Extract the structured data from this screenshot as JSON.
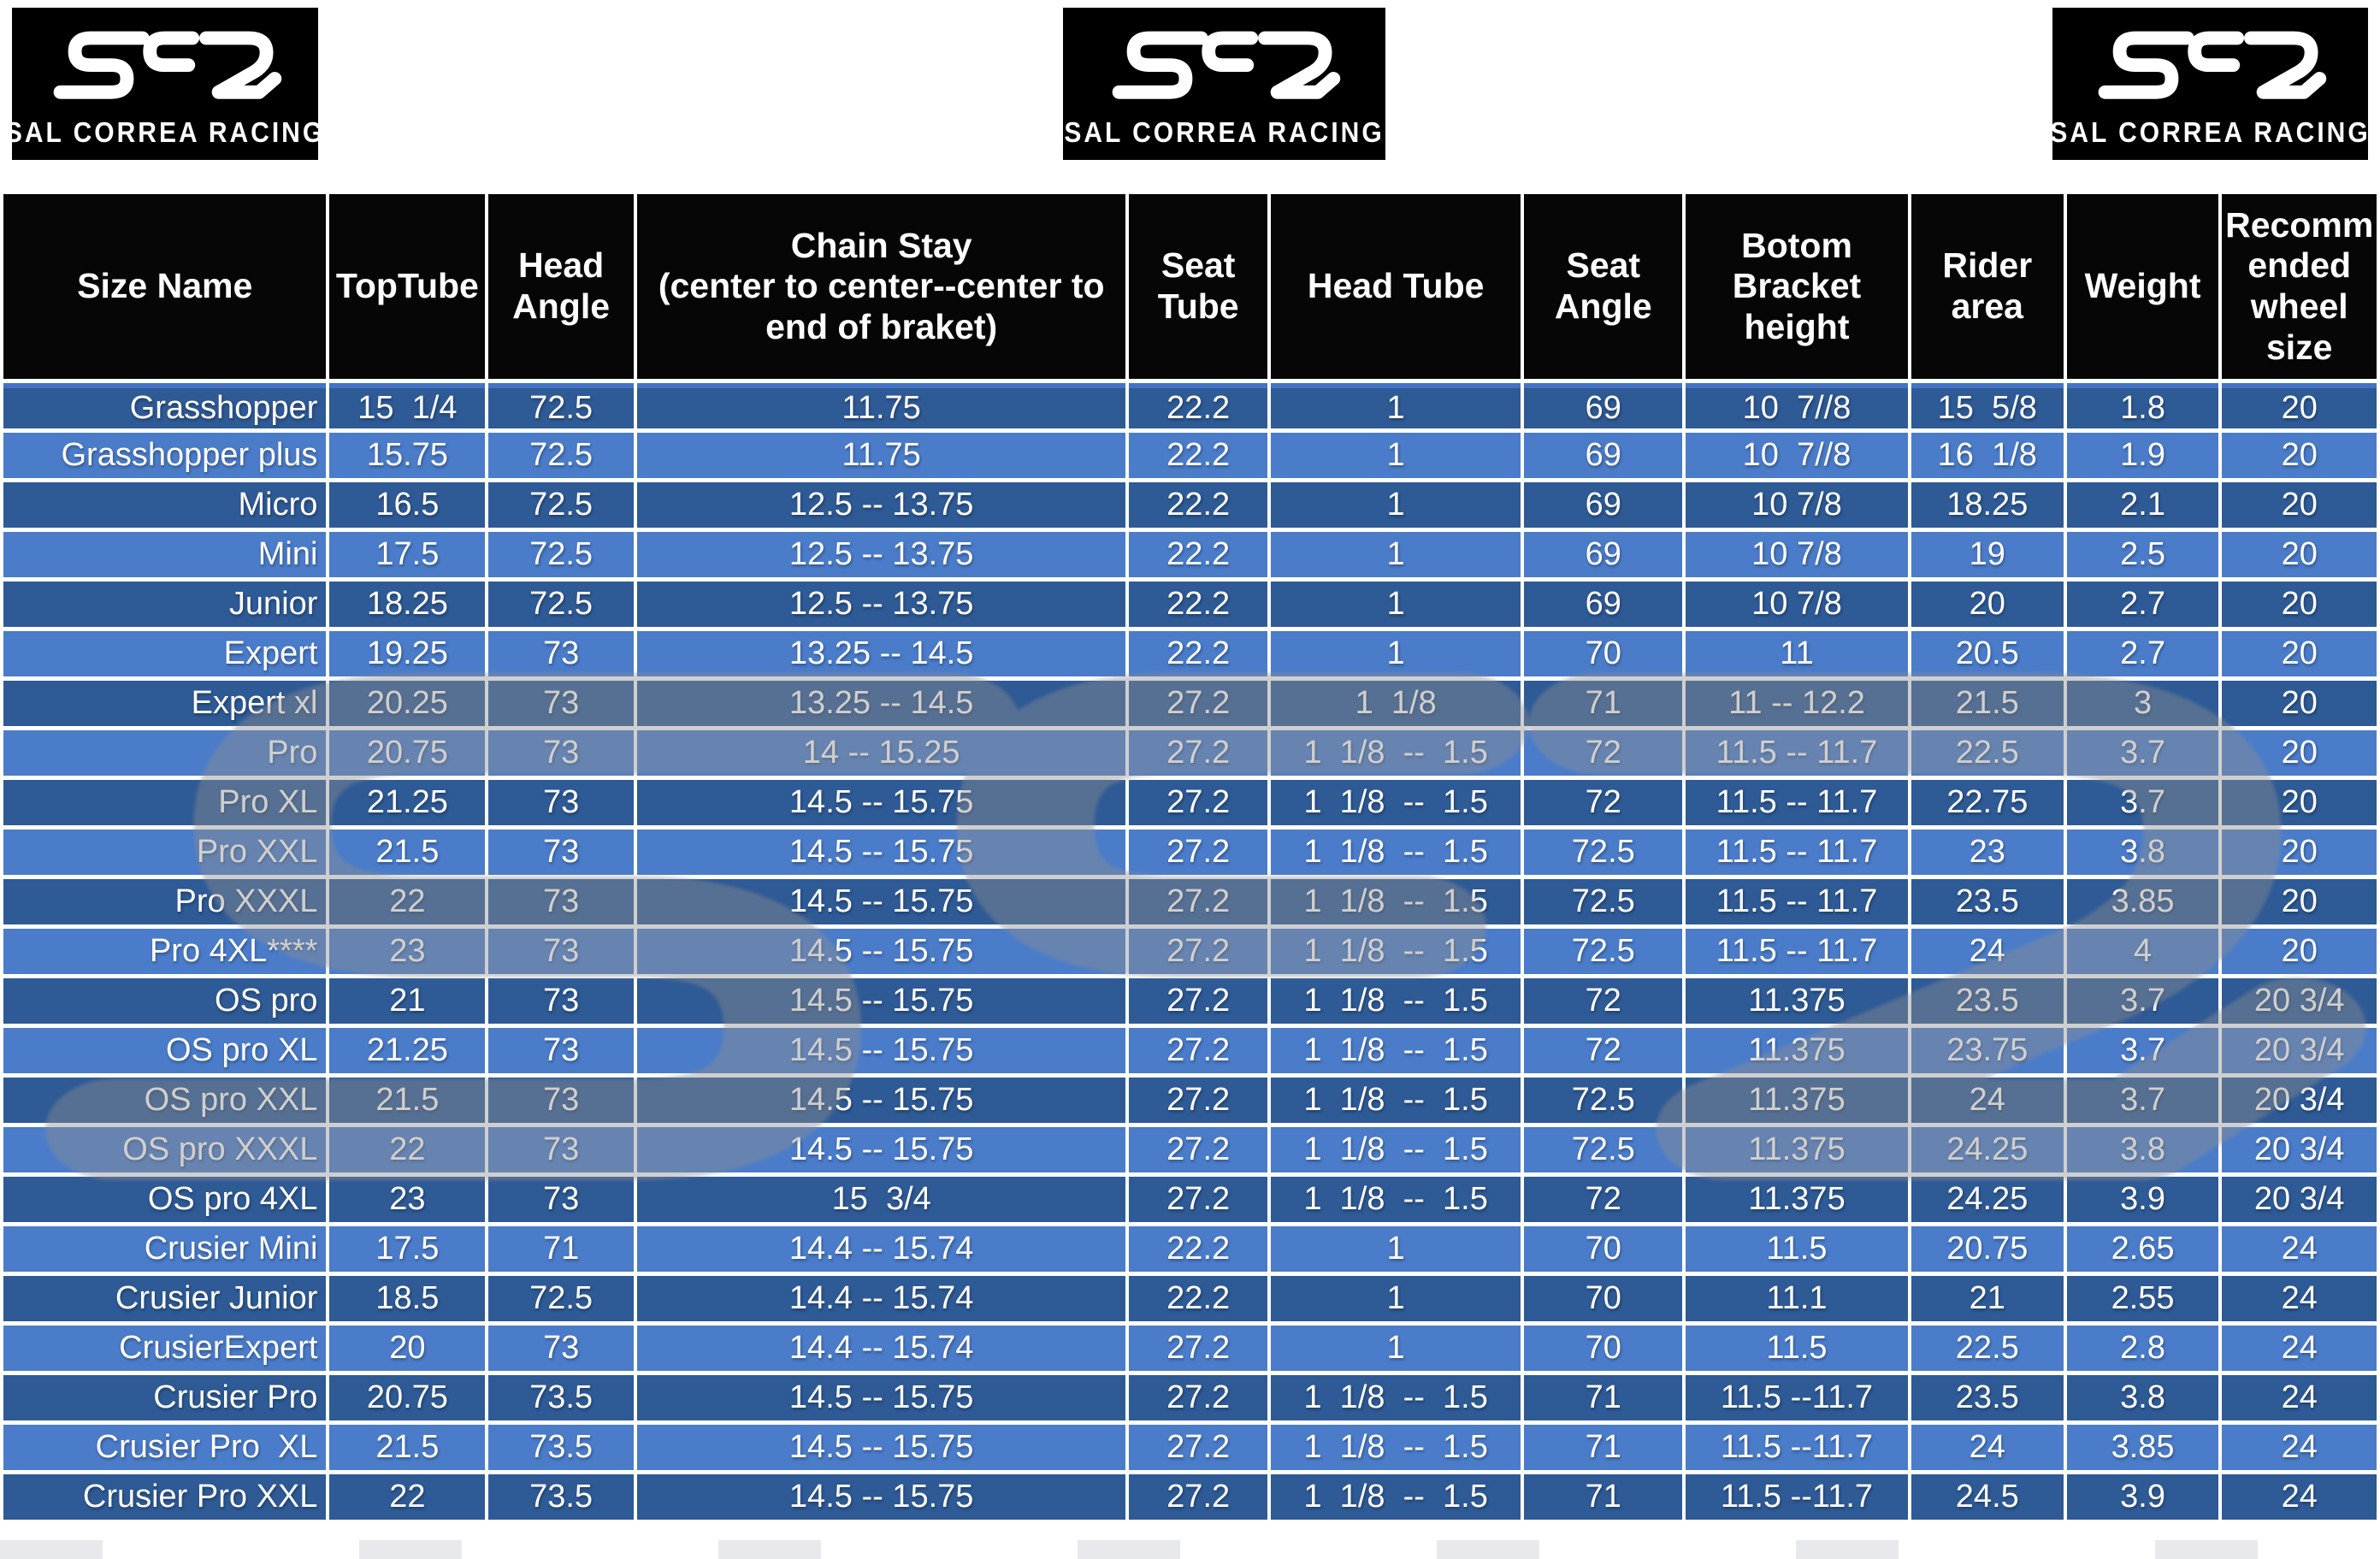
{
  "logo": {
    "brand": "SCR",
    "tagline": "SAL CORREA RACING",
    "count": 3
  },
  "colors": {
    "header_bg": "#060606",
    "row_dark": "#2e5a96",
    "row_light": "#4a7cca",
    "grid": "#ffffff",
    "accent_line": "#4472c4",
    "text": "#ffffff",
    "watermark": "#8f8f8f",
    "page_bg": "#ffffff"
  },
  "table": {
    "columns": [
      {
        "label": "Size Name"
      },
      {
        "label": "TopTube"
      },
      {
        "label": "Head\nAngle"
      },
      {
        "label": "Chain Stay\n(center to center--center to\nend of braket)"
      },
      {
        "label": "Seat\nTube"
      },
      {
        "label": "Head Tube"
      },
      {
        "label": "Seat\nAngle"
      },
      {
        "label": "Botom\nBracket\nheight"
      },
      {
        "label": "Rider\narea"
      },
      {
        "label": "Weight"
      },
      {
        "label": "Recomm\nended\nwheel\nsize"
      }
    ],
    "rows": [
      {
        "name": "Grasshopper",
        "values": [
          "15  1/4",
          "72.5",
          "11.75",
          "22.2",
          "1",
          "69",
          "10  7//8",
          "15  5/8",
          "1.8",
          "20"
        ]
      },
      {
        "name": "Grasshopper plus",
        "values": [
          "15.75",
          "72.5",
          "11.75",
          "22.2",
          "1",
          "69",
          "10  7//8",
          "16  1/8",
          "1.9",
          "20"
        ]
      },
      {
        "name": "Micro",
        "values": [
          "16.5",
          "72.5",
          "12.5 -- 13.75",
          "22.2",
          "1",
          "69",
          "10 7/8",
          "18.25",
          "2.1",
          "20"
        ]
      },
      {
        "name": "Mini",
        "values": [
          "17.5",
          "72.5",
          "12.5 -- 13.75",
          "22.2",
          "1",
          "69",
          "10 7/8",
          "19",
          "2.5",
          "20"
        ]
      },
      {
        "name": "Junior",
        "values": [
          "18.25",
          "72.5",
          "12.5 -- 13.75",
          "22.2",
          "1",
          "69",
          "10 7/8",
          "20",
          "2.7",
          "20"
        ]
      },
      {
        "name": "Expert",
        "values": [
          "19.25",
          "73",
          "13.25 -- 14.5",
          "22.2",
          "1",
          "70",
          "11",
          "20.5",
          "2.7",
          "20"
        ]
      },
      {
        "name": "Expert xl",
        "values": [
          "20.25",
          "73",
          "13.25 -- 14.5",
          "27.2",
          "1  1/8",
          "71",
          "11 -- 12.2",
          "21.5",
          "3",
          "20"
        ]
      },
      {
        "name": "Pro",
        "values": [
          "20.75",
          "73",
          "14 -- 15.25",
          "27.2",
          "1  1/8  --  1.5",
          "72",
          "11.5 -- 11.7",
          "22.5",
          "3.7",
          "20"
        ]
      },
      {
        "name": "Pro XL",
        "values": [
          "21.25",
          "73",
          "14.5 -- 15.75",
          "27.2",
          "1  1/8  --  1.5",
          "72",
          "11.5 -- 11.7",
          "22.75",
          "3.7",
          "20"
        ]
      },
      {
        "name": "Pro XXL",
        "values": [
          "21.5",
          "73",
          "14.5 -- 15.75",
          "27.2",
          "1  1/8  --  1.5",
          "72.5",
          "11.5 -- 11.7",
          "23",
          "3.8",
          "20"
        ]
      },
      {
        "name": "Pro XXXL",
        "values": [
          "22",
          "73",
          "14.5 -- 15.75",
          "27.2",
          "1  1/8  --  1.5",
          "72.5",
          "11.5 -- 11.7",
          "23.5",
          "3.85",
          "20"
        ]
      },
      {
        "name": "Pro 4XL****",
        "values": [
          "23",
          "73",
          "14.5 -- 15.75",
          "27.2",
          "1  1/8  --  1.5",
          "72.5",
          "11.5 -- 11.7",
          "24",
          "4",
          "20"
        ]
      },
      {
        "name": "OS pro",
        "values": [
          "21",
          "73",
          "14.5 -- 15.75",
          "27.2",
          "1  1/8  --  1.5",
          "72",
          "11.375",
          "23.5",
          "3.7",
          "20 3/4"
        ]
      },
      {
        "name": "OS pro XL",
        "values": [
          "21.25",
          "73",
          "14.5 -- 15.75",
          "27.2",
          "1  1/8  --  1.5",
          "72",
          "11.375",
          "23.75",
          "3.7",
          "20 3/4"
        ]
      },
      {
        "name": "OS pro XXL",
        "values": [
          "21.5",
          "73",
          "14.5 -- 15.75",
          "27.2",
          "1  1/8  --  1.5",
          "72.5",
          "11.375",
          "24",
          "3.7",
          "20 3/4"
        ]
      },
      {
        "name": "OS pro XXXL",
        "values": [
          "22",
          "73",
          "14.5 -- 15.75",
          "27.2",
          "1  1/8  --  1.5",
          "72.5",
          "11.375",
          "24.25",
          "3.8",
          "20 3/4"
        ]
      },
      {
        "name": "OS pro 4XL",
        "values": [
          "23",
          "73",
          "15  3/4",
          "27.2",
          "1  1/8  --  1.5",
          "72",
          "11.375",
          "24.25",
          "3.9",
          "20 3/4"
        ]
      },
      {
        "name": "Crusier Mini",
        "values": [
          "17.5",
          "71",
          "14.4 -- 15.74",
          "22.2",
          "1",
          "70",
          "11.5",
          "20.75",
          "2.65",
          "24"
        ]
      },
      {
        "name": "Crusier Junior",
        "values": [
          "18.5",
          "72.5",
          "14.4 -- 15.74",
          "22.2",
          "1",
          "70",
          "11.1",
          "21",
          "2.55",
          "24"
        ]
      },
      {
        "name": "CrusierExpert",
        "values": [
          "20",
          "73",
          "14.4 -- 15.74",
          "27.2",
          "1",
          "70",
          "11.5",
          "22.5",
          "2.8",
          "24"
        ]
      },
      {
        "name": "Crusier Pro",
        "values": [
          "20.75",
          "73.5",
          "14.5 -- 15.75",
          "27.2",
          "1  1/8  --  1.5",
          "71",
          "11.5 --11.7",
          "23.5",
          "3.8",
          "24"
        ]
      },
      {
        "name": "Crusier Pro  XL",
        "values": [
          "21.5",
          "73.5",
          "14.5 -- 15.75",
          "27.2",
          "1  1/8  --  1.5",
          "71",
          "11.5 --11.7",
          "24",
          "3.85",
          "24"
        ]
      },
      {
        "name": "Crusier Pro XXL",
        "values": [
          "22",
          "73.5",
          "14.5 -- 15.75",
          "27.2",
          "1  1/8  --  1.5",
          "71",
          "11.5 --11.7",
          "24.5",
          "3.9",
          "24"
        ]
      }
    ]
  }
}
